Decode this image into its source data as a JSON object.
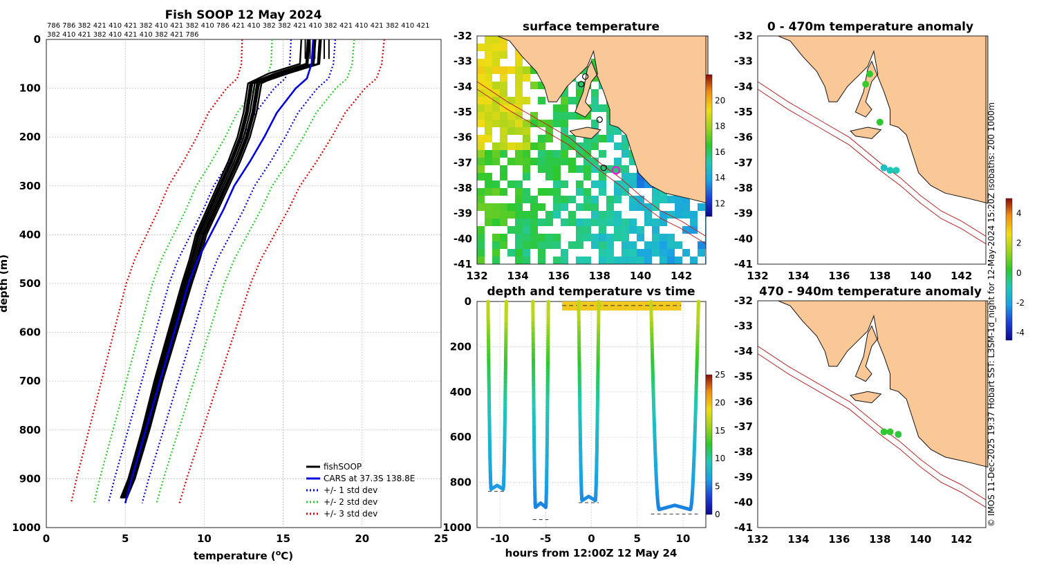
{
  "chart_data": [
    {
      "type": "line",
      "title": "Fish SOOP 12 May 2024",
      "xlabel": "temperature (°C)",
      "ylabel": "depth (m)",
      "xlim": [
        0,
        25
      ],
      "ylim": [
        1000,
        0
      ],
      "xticks": [
        "0",
        "5",
        "10",
        "15",
        "20",
        "25"
      ],
      "yticks": [
        "0",
        "100",
        "200",
        "300",
        "400",
        "500",
        "600",
        "700",
        "800",
        "900",
        "1000"
      ],
      "vessel_ids_row1": "786 786 382 421 410 421 382 410 421 382 410 786 421 410 382 382 421 410 382 421 410 421 382 410 421",
      "vessel_ids_row2": "382 410 421 382 410 421 410 382 421 786",
      "legend": [
        "fishSOOP",
        "CARS at 37.3S 138.8E",
        "+/- 1 std dev",
        "+/- 2 std dev",
        "+/- 3 std dev"
      ],
      "colors": {
        "fishsoop": "#000000",
        "cars": "#0000e0",
        "std1": "#0000e0",
        "std2": "#22cc22",
        "std3": "#e00000"
      },
      "cars_mean": {
        "depth": [
          0,
          50,
          80,
          100,
          150,
          200,
          250,
          300,
          350,
          400,
          450,
          500,
          600,
          700,
          800,
          900,
          950
        ],
        "temp": [
          16.9,
          16.8,
          16.5,
          15.8,
          14.6,
          13.8,
          12.9,
          11.9,
          11.2,
          10.4,
          9.6,
          9.0,
          8.1,
          7.2,
          6.3,
          5.4,
          5.0
        ]
      },
      "std_offsets": [
        1.4,
        2.6,
        4.5
      ],
      "fishsoop_mean": {
        "depth": [
          0,
          50,
          70,
          90,
          150,
          200,
          250,
          300,
          350,
          400,
          450,
          500,
          600,
          700,
          800,
          900,
          940
        ],
        "temp": [
          16.6,
          16.5,
          14.5,
          13.2,
          12.9,
          12.5,
          11.9,
          11.2,
          10.5,
          9.8,
          9.4,
          8.9,
          8.0,
          7.1,
          6.3,
          5.4,
          4.9
        ]
      }
    },
    {
      "type": "heatmap",
      "title": "surface temperature",
      "xticks": [
        "132",
        "134",
        "136",
        "138",
        "140",
        "142"
      ],
      "yticks": [
        "-32",
        "-33",
        "-34",
        "-35",
        "-36",
        "-37",
        "-38",
        "-39",
        "-40",
        "-41"
      ],
      "xlim": [
        132,
        143.2
      ],
      "ylim": [
        -41,
        -32
      ],
      "colorbar_ticks": [
        "12",
        "14",
        "16",
        "18",
        "20"
      ],
      "colorbar_range": [
        11,
        22
      ],
      "markers": [
        {
          "lon": 137.3,
          "lat": -33.6
        },
        {
          "lon": 137.1,
          "lat": -33.9
        },
        {
          "lon": 138.0,
          "lat": -35.3
        },
        {
          "lon": 138.2,
          "lat": -37.2
        },
        {
          "lon": 138.8,
          "lat": -37.3
        }
      ]
    },
    {
      "type": "scatter",
      "title": "0 - 470m temperature anomaly",
      "xticks": [
        "132",
        "134",
        "136",
        "138",
        "140",
        "142"
      ],
      "yticks": [
        "-32",
        "-33",
        "-34",
        "-35",
        "-36",
        "-37",
        "-38",
        "-39",
        "-40",
        "-41"
      ],
      "xlim": [
        132,
        143.2
      ],
      "ylim": [
        -41,
        -32
      ],
      "points": [
        {
          "lon": 137.5,
          "lat": -33.5,
          "v": 0.3
        },
        {
          "lon": 137.3,
          "lat": -33.9,
          "v": 0.4
        },
        {
          "lon": 138.0,
          "lat": -35.4,
          "v": 0.2
        },
        {
          "lon": 138.2,
          "lat": -37.2,
          "v": -1.2
        },
        {
          "lon": 138.5,
          "lat": -37.3,
          "v": -1.0
        },
        {
          "lon": 138.8,
          "lat": -37.3,
          "v": -0.9
        }
      ]
    },
    {
      "type": "scatter",
      "title": "470 - 940m temperature anomaly",
      "xticks": [
        "132",
        "134",
        "136",
        "138",
        "140",
        "142"
      ],
      "yticks": [
        "-32",
        "-33",
        "-34",
        "-35",
        "-36",
        "-37",
        "-38",
        "-39",
        "-40",
        "-41"
      ],
      "xlim": [
        132,
        143.2
      ],
      "ylim": [
        -41,
        -32
      ],
      "anomaly_colorbar_ticks": [
        "-4",
        "-2",
        "0",
        "2",
        "4"
      ],
      "anomaly_range": [
        -4.5,
        5
      ],
      "points": [
        {
          "lon": 138.2,
          "lat": -37.2,
          "v": 0.2
        },
        {
          "lon": 138.5,
          "lat": -37.2,
          "v": 0.3
        },
        {
          "lon": 138.9,
          "lat": -37.3,
          "v": 0.1
        }
      ]
    },
    {
      "type": "scatter",
      "title": "depth and temperature vs time",
      "xlabel": "hours from 12:00Z 12 May 24",
      "xticks": [
        "-10",
        "-5",
        "0",
        "5",
        "10"
      ],
      "yticks": [
        "0",
        "200",
        "400",
        "600",
        "800",
        "1000"
      ],
      "xlim": [
        -12.5,
        12.5
      ],
      "ylim": [
        1000,
        0
      ],
      "colorbar_ticks": [
        "0",
        "5",
        "10",
        "15",
        "20",
        "25"
      ],
      "colorbar_range": [
        0,
        25
      ],
      "casts": [
        {
          "t0": -11.3,
          "t1": -9.3,
          "maxdepth": 830,
          "bottom": 840
        },
        {
          "t0": -6.4,
          "t1": -4.7,
          "maxdepth": 910,
          "bottom": 965
        },
        {
          "t0": -1.4,
          "t1": 0.8,
          "maxdepth": 880,
          "bottom": 890
        },
        {
          "t0": 6.5,
          "t1": 11.7,
          "maxdepth": 920,
          "bottom": 940
        }
      ],
      "surface_segment": [
        -3.2,
        9.8
      ]
    }
  ],
  "side_caption": "© IMOS 11-Dec-2025 19:37 Hobart SST: L3SM-1d_night for 12-May-2024 15:20Z isobaths: 200  1000m"
}
